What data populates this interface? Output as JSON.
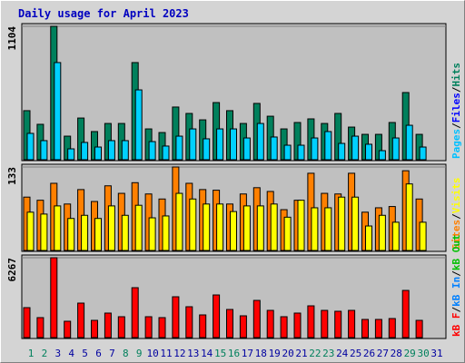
{
  "chart_data": {
    "type": "bar",
    "title": "Daily usage for April 2023",
    "categories": [
      "1",
      "2",
      "3",
      "4",
      "5",
      "6",
      "7",
      "8",
      "9",
      "10",
      "11",
      "12",
      "13",
      "14",
      "15",
      "16",
      "17",
      "18",
      "19",
      "20",
      "21",
      "22",
      "23",
      "24",
      "25",
      "26",
      "27",
      "28",
      "29",
      "30",
      "31"
    ],
    "category_colors": [
      "#00805c",
      "#00805c",
      "#0000a0",
      "#0000a0",
      "#0000a0",
      "#0000a0",
      "#0000a0",
      "#00805c",
      "#00805c",
      "#0000a0",
      "#0000a0",
      "#0000a0",
      "#0000a0",
      "#0000a0",
      "#00805c",
      "#00805c",
      "#0000a0",
      "#0000a0",
      "#0000a0",
      "#0000a0",
      "#0000a0",
      "#00805c",
      "#00805c",
      "#0000a0",
      "#0000a0",
      "#0000a0",
      "#0000a0",
      "#0000a0",
      "#00805c",
      "#00805c",
      "#0000a0"
    ],
    "panels": [
      {
        "ylim": [
          0,
          1104
        ],
        "yticks": [
          1104
        ],
        "legend": [
          {
            "text": "Pages",
            "color": "#00c0ff"
          },
          {
            "text": "/",
            "color": "#000000"
          },
          {
            "text": "Files",
            "color": "#0000ff"
          },
          {
            "text": "/",
            "color": "#000000"
          },
          {
            "text": "Hits",
            "color": "#00805c"
          }
        ],
        "series": [
          {
            "color": "#00805c",
            "values": [
              406,
              293,
              1104,
              195,
              345,
              233,
              300,
              300,
              804,
              255,
              225,
              436,
              383,
              330,
              473,
              406,
              300,
              466,
              360,
              255,
              308,
              338,
              300,
              383,
              270,
              210,
              210,
              308,
              556,
              210,
              null
            ]
          },
          {
            "color": "#00d0ff",
            "values": [
              218,
              158,
              804,
              90,
              143,
              105,
              158,
              158,
              578,
              150,
              113,
              195,
              255,
              173,
              255,
              255,
              180,
              300,
              188,
              120,
              120,
              180,
              233,
              135,
              195,
              128,
              75,
              180,
              285,
              105,
              null
            ]
          }
        ]
      },
      {
        "ylim": [
          0,
          133
        ],
        "yticks": [
          133
        ],
        "legend": [
          {
            "text": "Sites",
            "color": "#ff8000"
          },
          {
            "text": "/",
            "color": "#000000"
          },
          {
            "text": "Visits",
            "color": "#ffff00"
          }
        ],
        "series": [
          {
            "color": "#ff8000",
            "values": [
              85,
              80,
              107,
              74,
              97,
              78,
              103,
              91,
              108,
              90,
              82,
              133,
              107,
              97,
              96,
              74,
              90,
              100,
              94,
              65,
              80,
              123,
              91,
              90,
              123,
              61,
              68,
              70,
              127,
              82,
              null
            ]
          },
          {
            "color": "#ffff00",
            "values": [
              61,
              58,
              71,
              51,
              56,
              51,
              71,
              56,
              72,
              52,
              55,
              91,
              82,
              74,
              74,
              62,
              71,
              71,
              74,
              53,
              80,
              68,
              68,
              85,
              85,
              39,
              56,
              45,
              106,
              45,
              null
            ]
          }
        ]
      },
      {
        "ylim": [
          0,
          6267
        ],
        "yticks": [
          6267
        ],
        "legend": [
          {
            "text": "kB F",
            "color": "#ff0000"
          },
          {
            "text": "/",
            "color": "#000000"
          },
          {
            "text": "kB In",
            "color": "#0080ff"
          },
          {
            "text": "/",
            "color": "#000000"
          },
          {
            "text": "kB Out",
            "color": "#00c000"
          }
        ],
        "series": [
          {
            "color": "#ff0000",
            "values": [
              2350,
              1567,
              6267,
              1282,
              2706,
              1353,
              1923,
              1638,
              3916,
              1638,
              1567,
              3204,
              2421,
              1780,
              3346,
              2207,
              1709,
              2919,
              2136,
              1638,
              1923,
              2492,
              2136,
              2065,
              2136,
              1424,
              1424,
              1495,
              3702,
              1353,
              null
            ]
          }
        ]
      }
    ]
  }
}
